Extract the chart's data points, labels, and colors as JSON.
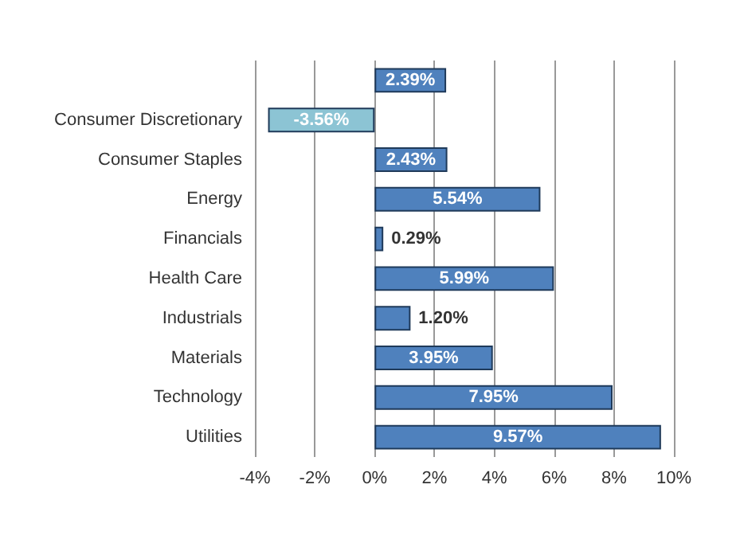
{
  "chart_data": {
    "type": "bar",
    "orientation": "horizontal",
    "categories": [
      null,
      "Consumer Discretionary",
      "Consumer Staples",
      "Energy",
      "Financials",
      "Health Care",
      "Industrials",
      "Materials",
      "Technology",
      "Utilities"
    ],
    "values": [
      2.39,
      -3.56,
      2.43,
      5.54,
      0.29,
      5.99,
      1.2,
      3.95,
      7.95,
      9.57
    ],
    "colors": [
      "#4f81bd",
      "#8cc4d4",
      "#4f81bd",
      "#4f81bd",
      "#4f81bd",
      "#4f81bd",
      "#4f81bd",
      "#4f81bd",
      "#4f81bd",
      "#4f81bd"
    ],
    "value_labels": [
      "2.39%",
      "-3.56%",
      "2.43%",
      "5.54%",
      "0.29%",
      "5.99%",
      "1.20%",
      "3.95%",
      "7.95%",
      "9.57%"
    ],
    "xlim": [
      -4,
      10
    ],
    "xticks": [
      {
        "value": -4,
        "label": "-4%"
      },
      {
        "value": -2,
        "label": "-2%"
      },
      {
        "value": 0,
        "label": "0%"
      },
      {
        "value": 2,
        "label": "2%"
      },
      {
        "value": 4,
        "label": "4%"
      },
      {
        "value": 6,
        "label": "6%"
      },
      {
        "value": 8,
        "label": "8%"
      },
      {
        "value": 10,
        "label": "10%"
      }
    ],
    "grid": "x"
  }
}
